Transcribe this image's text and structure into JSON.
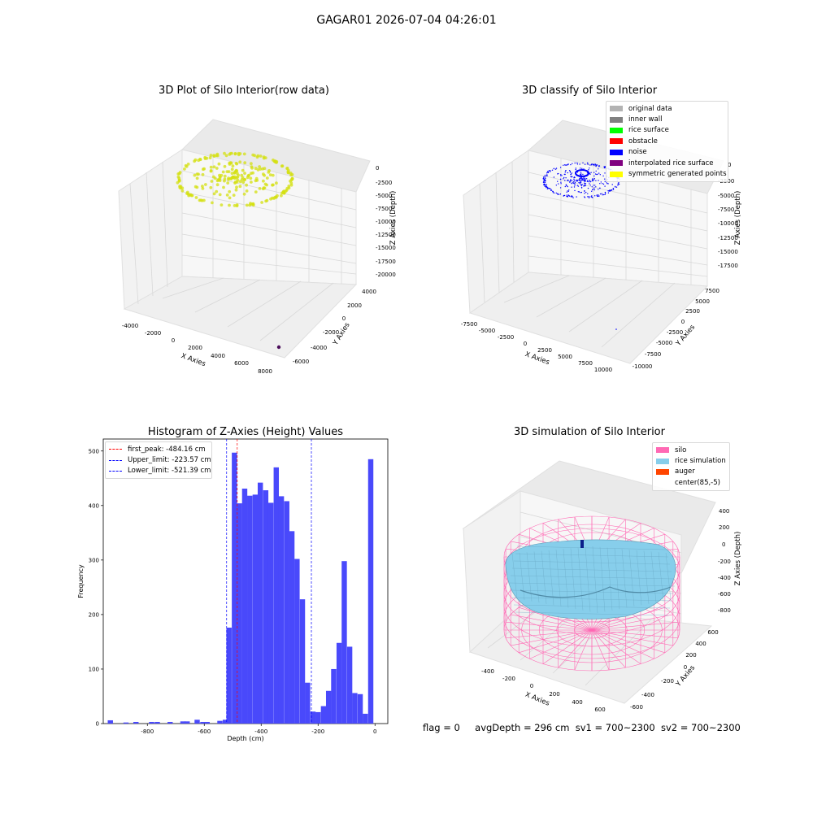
{
  "suptitle": "GAGAR01 2026-07-04 04:26:01",
  "footer": {
    "flag": "flag = 0",
    "avg": "avgDepth = 296 cm",
    "sv1": "sv1 = 700~2300",
    "sv2": "sv2 = 700~2300"
  },
  "chart_data": [
    {
      "type": "scatter",
      "title": "3D Plot of Silo Interior(row data)",
      "xlabel": "X Axies",
      "ylabel": "Y Axies",
      "zlabel": "Z Axies (Depth)",
      "x_ticks": [
        "-4000",
        "-2000",
        "0",
        "2000",
        "4000",
        "6000",
        "8000"
      ],
      "y_ticks": [
        "-6000",
        "-4000",
        "-2000",
        "0",
        "2000",
        "4000"
      ],
      "z_ticks": [
        "0",
        "-2500",
        "-5000",
        "-7500",
        "-10000",
        "-12500",
        "-15000",
        "-17500",
        "-20000"
      ],
      "colors": {
        "points": "#d4e012",
        "outlier": "#4b0d5a"
      },
      "grid": true
    },
    {
      "type": "scatter",
      "title": "3D classify of Silo Interior",
      "xlabel": "X Axies",
      "ylabel": "Y Axies",
      "zlabel": "Z Axies (Depth)",
      "x_ticks": [
        "-7500",
        "-5000",
        "-2500",
        "0",
        "2500",
        "5000",
        "7500",
        "10000"
      ],
      "y_ticks": [
        "-10000",
        "-7500",
        "-5000",
        "-2500",
        "0",
        "2500",
        "5000",
        "7500"
      ],
      "z_ticks": [
        "0",
        "-2500",
        "-5000",
        "-7500",
        "-10000",
        "-12500",
        "-15000",
        "-17500"
      ],
      "legend": [
        {
          "name": "original data",
          "color": "#b3b3b3"
        },
        {
          "name": "inner wall",
          "color": "#808080"
        },
        {
          "name": "rice surface",
          "color": "#00ff00"
        },
        {
          "name": "obstacle",
          "color": "#ff0000"
        },
        {
          "name": "noise",
          "color": "#0000ff"
        },
        {
          "name": "interpolated rice surface",
          "color": "#800080"
        },
        {
          "name": "symmetric generated points",
          "color": "#ffff00"
        }
      ],
      "legend_position": "top-right",
      "grid": true
    },
    {
      "type": "bar",
      "title": "Histogram of Z-Axies (Height) Values",
      "xlabel": "Depth (cm)",
      "ylabel": "Frequency",
      "xlim": [
        -955,
        45
      ],
      "ylim": [
        0,
        522
      ],
      "x_ticks": [
        -800,
        -600,
        -400,
        -200,
        0
      ],
      "y_ticks": [
        0,
        100,
        200,
        300,
        400,
        500
      ],
      "bin_width": 18.4,
      "bins": [
        [
          -930,
          6
        ],
        [
          -875,
          2
        ],
        [
          -840,
          3
        ],
        [
          -785,
          3
        ],
        [
          -765,
          3
        ],
        [
          -720,
          3
        ],
        [
          -675,
          4
        ],
        [
          -660,
          4
        ],
        [
          -625,
          7
        ],
        [
          -605,
          3
        ],
        [
          -590,
          3
        ],
        [
          -545,
          5
        ],
        [
          -526,
          7
        ],
        [
          -513,
          176
        ],
        [
          -494,
          497
        ],
        [
          -476,
          404
        ],
        [
          -458,
          431
        ],
        [
          -440,
          418
        ],
        [
          -421,
          420
        ],
        [
          -403,
          442
        ],
        [
          -384,
          428
        ],
        [
          -366,
          405
        ],
        [
          -347,
          470
        ],
        [
          -329,
          417
        ],
        [
          -310,
          408
        ],
        [
          -292,
          353
        ],
        [
          -274,
          302
        ],
        [
          -255,
          228
        ],
        [
          -237,
          75
        ],
        [
          -218,
          22
        ],
        [
          -200,
          21
        ],
        [
          -181,
          32
        ],
        [
          -163,
          60
        ],
        [
          -145,
          100
        ],
        [
          -126,
          148
        ],
        [
          -108,
          298
        ],
        [
          -89,
          141
        ],
        [
          -71,
          56
        ],
        [
          -52,
          54
        ],
        [
          -34,
          18
        ],
        [
          -15,
          485
        ]
      ],
      "color": "#4949fb",
      "lines": [
        {
          "name": "first_peak: -484.16 cm",
          "value": -484.16,
          "color": "#ff0000"
        },
        {
          "name": "Upper_limit: -223.57 cm",
          "value": -223.57,
          "color": "#0000ff"
        },
        {
          "name": "Lower_limit: -521.39 cm",
          "value": -521.39,
          "color": "#0000ff"
        }
      ],
      "legend_position": "top-left"
    },
    {
      "type": "surface",
      "title": "3D simulation of Silo Interior",
      "xlabel": "X Axies",
      "ylabel": "Y Axies",
      "zlabel": "Z Axies (Depth)",
      "x_ticks": [
        "-400",
        "-200",
        "0",
        "200",
        "400",
        "600"
      ],
      "y_ticks": [
        "-600",
        "-400",
        "-200",
        "0",
        "200",
        "400",
        "600"
      ],
      "z_ticks": [
        "400",
        "200",
        "0",
        "-200",
        "-400",
        "-600",
        "-800"
      ],
      "legend": [
        {
          "name": "silo",
          "color": "#ff69b4"
        },
        {
          "name": "rice simulation",
          "color": "#87ceeb"
        },
        {
          "name": "auger",
          "color": "#ff4500"
        },
        {
          "name": "center(85,-5)",
          "color": "#ffffff"
        }
      ],
      "legend_position": "top-right"
    }
  ]
}
